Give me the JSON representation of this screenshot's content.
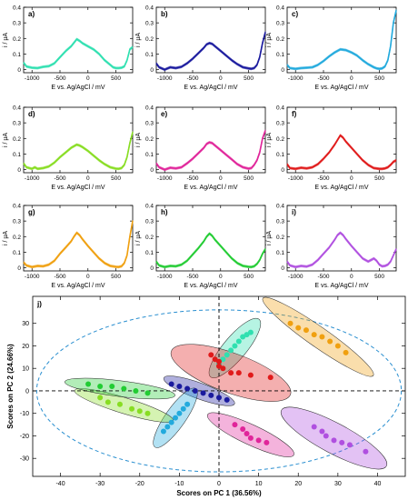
{
  "figure": {
    "voltammogram_panels": [
      {
        "tag": "a)",
        "ylabel": "i / μA",
        "xlabel": "E vs. Ag/AgCl / mV",
        "color": "#2fe0b0",
        "xticks": [
          "-1000",
          "-500",
          "0",
          "500"
        ],
        "yticks": [
          "0",
          "0.1",
          "0.2",
          "0.3",
          "0.4"
        ]
      },
      {
        "tag": "b)",
        "ylabel": "i / μA",
        "xlabel": "E vs. Ag/AgCl / mV",
        "color": "#1a1a9e",
        "xticks": [
          "-1000",
          "-500",
          "0",
          "500"
        ],
        "yticks": [
          "0",
          "0.1",
          "0.2",
          "0.3",
          "0.4"
        ]
      },
      {
        "tag": "c)",
        "ylabel": "i / μA",
        "xlabel": "E vs. Ag/AgCl / mV",
        "color": "#22aadd",
        "xticks": [
          "-1000",
          "-500",
          "0",
          "500"
        ],
        "yticks": [
          "0",
          "0.1",
          "0.2",
          "0.3",
          "0.4"
        ]
      },
      {
        "tag": "d)",
        "ylabel": "i / μA",
        "xlabel": "E vs. Ag/AgCl / mV",
        "color": "#88dd22",
        "xticks": [
          "-1000",
          "-500",
          "0",
          "500"
        ],
        "yticks": [
          "0",
          "0.1",
          "0.2",
          "0.3",
          "0.4"
        ]
      },
      {
        "tag": "e)",
        "ylabel": "i / μA",
        "xlabel": "E vs. Ag/AgCl / mV",
        "color": "#e0259a",
        "xticks": [
          "-1000",
          "-500",
          "0",
          "500"
        ],
        "yticks": [
          "0",
          "0.1",
          "0.2",
          "0.3",
          "0.4"
        ]
      },
      {
        "tag": "f)",
        "ylabel": "i / μA",
        "xlabel": "E vs. Ag/AgCl / mV",
        "color": "#e01a1a",
        "xticks": [
          "-1000",
          "-500",
          "0",
          "500"
        ],
        "yticks": [
          "0",
          "0.1",
          "0.2",
          "0.3",
          "0.4"
        ]
      },
      {
        "tag": "g)",
        "ylabel": "i / μA",
        "xlabel": "E vs. Ag/AgCl / mV",
        "color": "#f0a010",
        "xticks": [
          "-1000",
          "-500",
          "0",
          "500"
        ],
        "yticks": [
          "0",
          "0.1",
          "0.2",
          "0.3",
          "0.4"
        ]
      },
      {
        "tag": "h)",
        "ylabel": "i / μA",
        "xlabel": "E vs. Ag/AgCl / mV",
        "color": "#22cc33",
        "xticks": [
          "-1000",
          "-500",
          "0",
          "500"
        ],
        "yticks": [
          "0",
          "0.1",
          "0.2",
          "0.3",
          "0.4"
        ]
      },
      {
        "tag": "i)",
        "ylabel": "i / μA",
        "xlabel": "E vs. Ag/AgCl / mV",
        "color": "#b050e0",
        "xticks": [
          "-1000",
          "-500",
          "0",
          "500"
        ],
        "yticks": [
          "0",
          "0.1",
          "0.2",
          "0.3",
          "0.4"
        ]
      }
    ],
    "pca_panel": {
      "tag": "j)",
      "xlabel": "Scores on PC 1 (36.56%)",
      "ylabel": "Scores on PC 2 (24.66%)",
      "xticks": [
        "-40",
        "-30",
        "-20",
        "-10",
        "0",
        "10",
        "20",
        "30",
        "40"
      ],
      "yticks": [
        "-30",
        "-20",
        "-10",
        "0",
        "10",
        "20",
        "30"
      ]
    }
  },
  "chart_data": [
    {
      "type": "line",
      "panel": "a)",
      "xlim": [
        -1150,
        800
      ],
      "ylim": [
        -0.02,
        0.4
      ],
      "x": [
        -1150,
        -1100,
        -1000,
        -900,
        -800,
        -700,
        -600,
        -500,
        -400,
        -300,
        -200,
        -150,
        -100,
        0,
        100,
        200,
        300,
        400,
        450,
        500,
        550,
        600,
        650,
        700,
        750,
        800
      ],
      "y": [
        0.045,
        0.02,
        0.012,
        0.01,
        0.018,
        0.022,
        0.04,
        0.08,
        0.118,
        0.15,
        0.195,
        0.185,
        0.17,
        0.15,
        0.13,
        0.1,
        0.06,
        0.03,
        0.015,
        0.01,
        0.01,
        0.012,
        0.02,
        0.06,
        0.13,
        0.145
      ]
    },
    {
      "type": "line",
      "panel": "b)",
      "xlim": [
        -1150,
        800
      ],
      "ylim": [
        -0.02,
        0.4
      ],
      "x": [
        -1150,
        -1100,
        -1000,
        -900,
        -800,
        -700,
        -600,
        -500,
        -400,
        -300,
        -250,
        -200,
        -150,
        -100,
        0,
        100,
        200,
        300,
        400,
        500,
        550,
        600,
        650,
        700,
        750,
        800
      ],
      "y": [
        0.04,
        0.015,
        0.0,
        0.015,
        0.01,
        0.018,
        0.04,
        0.07,
        0.105,
        0.14,
        0.162,
        0.17,
        0.165,
        0.15,
        0.12,
        0.09,
        0.06,
        0.035,
        0.015,
        0.008,
        0.005,
        0.01,
        0.03,
        0.08,
        0.17,
        0.24
      ]
    },
    {
      "type": "line",
      "panel": "c)",
      "xlim": [
        -1150,
        800
      ],
      "ylim": [
        -0.02,
        0.4
      ],
      "x": [
        -1150,
        -1100,
        -1000,
        -900,
        -800,
        -700,
        -600,
        -500,
        -400,
        -300,
        -200,
        -100,
        0,
        100,
        200,
        300,
        400,
        450,
        500,
        550,
        600,
        650,
        700,
        750,
        800
      ],
      "y": [
        0.03,
        0.01,
        0.005,
        0.01,
        0.012,
        0.015,
        0.03,
        0.055,
        0.085,
        0.11,
        0.13,
        0.125,
        0.11,
        0.09,
        0.06,
        0.035,
        0.015,
        0.008,
        0.005,
        0.008,
        0.02,
        0.06,
        0.15,
        0.3,
        0.38
      ]
    },
    {
      "type": "line",
      "panel": "d)",
      "xlim": [
        -1150,
        800
      ],
      "ylim": [
        -0.02,
        0.4
      ],
      "x": [
        -1150,
        -1100,
        -1000,
        -950,
        -900,
        -800,
        -700,
        -600,
        -500,
        -400,
        -300,
        -200,
        -150,
        -100,
        0,
        100,
        200,
        300,
        400,
        500,
        550,
        600,
        650,
        700,
        750,
        800
      ],
      "y": [
        0.04,
        0.015,
        0.005,
        0.015,
        0.005,
        0.01,
        0.02,
        0.045,
        0.08,
        0.11,
        0.14,
        0.16,
        0.155,
        0.145,
        0.12,
        0.09,
        0.06,
        0.035,
        0.015,
        0.006,
        0.005,
        0.01,
        0.03,
        0.08,
        0.17,
        0.24
      ]
    },
    {
      "type": "line",
      "panel": "e)",
      "xlim": [
        -1150,
        800
      ],
      "ylim": [
        -0.02,
        0.4
      ],
      "x": [
        -1150,
        -1100,
        -1000,
        -900,
        -800,
        -700,
        -600,
        -500,
        -400,
        -300,
        -250,
        -200,
        -150,
        -100,
        0,
        100,
        200,
        300,
        400,
        500,
        550,
        600,
        650,
        700,
        750,
        800
      ],
      "y": [
        0.04,
        0.015,
        0.0,
        0.012,
        0.008,
        0.015,
        0.04,
        0.07,
        0.105,
        0.14,
        0.165,
        0.175,
        0.17,
        0.155,
        0.125,
        0.095,
        0.065,
        0.035,
        0.015,
        0.006,
        0.01,
        0.03,
        0.06,
        0.11,
        0.2,
        0.25
      ]
    },
    {
      "type": "line",
      "panel": "f)",
      "xlim": [
        -1150,
        800
      ],
      "ylim": [
        -0.02,
        0.4
      ],
      "x": [
        -1150,
        -1100,
        -1000,
        -900,
        -800,
        -700,
        -600,
        -500,
        -400,
        -300,
        -250,
        -200,
        -150,
        -100,
        0,
        100,
        200,
        300,
        400,
        500,
        550,
        600,
        650,
        700,
        750,
        800
      ],
      "y": [
        0.035,
        0.01,
        0.005,
        0.012,
        0.008,
        0.015,
        0.035,
        0.07,
        0.11,
        0.16,
        0.19,
        0.22,
        0.205,
        0.18,
        0.14,
        0.1,
        0.06,
        0.03,
        0.01,
        0.005,
        0.005,
        0.008,
        0.015,
        0.03,
        0.05,
        0.06
      ]
    },
    {
      "type": "line",
      "panel": "g)",
      "xlim": [
        -1150,
        800
      ],
      "ylim": [
        -0.02,
        0.4
      ],
      "x": [
        -1150,
        -1100,
        -1000,
        -900,
        -800,
        -700,
        -600,
        -500,
        -400,
        -300,
        -250,
        -200,
        -150,
        -100,
        0,
        100,
        200,
        300,
        400,
        500,
        550,
        600,
        650,
        700,
        750,
        800
      ],
      "y": [
        0.035,
        0.015,
        0.005,
        0.012,
        0.01,
        0.02,
        0.045,
        0.09,
        0.13,
        0.17,
        0.2,
        0.225,
        0.21,
        0.185,
        0.14,
        0.1,
        0.06,
        0.03,
        0.012,
        0.006,
        0.005,
        0.01,
        0.03,
        0.08,
        0.2,
        0.3
      ]
    },
    {
      "type": "line",
      "panel": "h)",
      "xlim": [
        -1150,
        800
      ],
      "ylim": [
        -0.02,
        0.4
      ],
      "x": [
        -1150,
        -1100,
        -1000,
        -900,
        -800,
        -700,
        -600,
        -500,
        -400,
        -300,
        -250,
        -200,
        -150,
        -100,
        0,
        100,
        200,
        300,
        400,
        500,
        550,
        600,
        650,
        700,
        750,
        800
      ],
      "y": [
        0.04,
        0.015,
        0.005,
        0.012,
        0.01,
        0.02,
        0.045,
        0.085,
        0.125,
        0.17,
        0.2,
        0.22,
        0.205,
        0.18,
        0.14,
        0.1,
        0.06,
        0.03,
        0.012,
        0.006,
        0.005,
        0.01,
        0.025,
        0.05,
        0.09,
        0.12
      ]
    },
    {
      "type": "line",
      "panel": "i)",
      "xlim": [
        -1150,
        800
      ],
      "ylim": [
        -0.02,
        0.4
      ],
      "x": [
        -1150,
        -1100,
        -1000,
        -900,
        -800,
        -700,
        -600,
        -500,
        -400,
        -300,
        -250,
        -200,
        -150,
        -100,
        0,
        100,
        200,
        300,
        350,
        400,
        450,
        500,
        550,
        600,
        650,
        700,
        750,
        800
      ],
      "y": [
        0.04,
        0.015,
        0.005,
        0.012,
        0.008,
        0.02,
        0.05,
        0.09,
        0.13,
        0.18,
        0.21,
        0.225,
        0.21,
        0.185,
        0.14,
        0.1,
        0.06,
        0.04,
        0.05,
        0.06,
        0.045,
        0.02,
        0.01,
        0.012,
        0.02,
        0.04,
        0.08,
        0.12
      ]
    },
    {
      "type": "scatter",
      "panel": "j)",
      "xlabel": "Scores on PC 1 (36.56%)",
      "ylabel": "Scores on PC 2 (24.66%)",
      "xlim": [
        -47,
        47
      ],
      "ylim": [
        -38,
        42
      ],
      "reference_lines": {
        "x": 0,
        "y": 0
      },
      "confidence_ellipse": {
        "center": [
          0,
          0
        ],
        "rx": 46,
        "ry": 36
      },
      "series": [
        {
          "color": "#2fe0b0",
          "points": [
            [
              0,
              12
            ],
            [
              1,
              14
            ],
            [
              2,
              16
            ],
            [
              3,
              18
            ],
            [
              4,
              20
            ],
            [
              5,
              22
            ],
            [
              6,
              24
            ],
            [
              7,
              25
            ],
            [
              8,
              26
            ]
          ],
          "ellipse": {
            "center": [
              4,
              19
            ],
            "rx": 9.5,
            "ry": 3.2,
            "angle_deg": 50
          }
        },
        {
          "color": "#1a1a9e",
          "points": [
            [
              -12,
              3
            ],
            [
              -10,
              2
            ],
            [
              -8,
              1
            ],
            [
              -6,
              0
            ],
            [
              -4,
              -1
            ],
            [
              -2,
              -2
            ],
            [
              0,
              -3
            ],
            [
              2,
              -4
            ]
          ],
          "ellipse": {
            "center": [
              -5,
              0
            ],
            "rx": 9.5,
            "ry": 2.2,
            "angle_deg": -20
          }
        },
        {
          "color": "#22aadd",
          "points": [
            [
              -14,
              -18
            ],
            [
              -13,
              -16
            ],
            [
              -12,
              -14
            ],
            [
              -11,
              -12
            ],
            [
              -10,
              -10
            ],
            [
              -9,
              -8
            ],
            [
              -8,
              -6
            ]
          ],
          "ellipse": {
            "center": [
              -11,
              -12
            ],
            "rx": 9,
            "ry": 2.8,
            "angle_deg": 55
          }
        },
        {
          "color": "#88dd22",
          "points": [
            [
              -30,
              -3
            ],
            [
              -28,
              -5
            ],
            [
              -25,
              -6
            ],
            [
              -22,
              -8
            ],
            [
              -20,
              -9
            ],
            [
              -18,
              -10
            ]
          ],
          "ellipse": {
            "center": [
              -24,
              -6.5
            ],
            "rx": 13,
            "ry": 2.2,
            "angle_deg": -17
          }
        },
        {
          "color": "#e0259a",
          "points": [
            [
              4,
              -15
            ],
            [
              6,
              -17
            ],
            [
              7,
              -19
            ],
            [
              8,
              -21
            ],
            [
              10,
              -22
            ],
            [
              12,
              -23
            ]
          ],
          "ellipse": {
            "center": [
              8,
              -19.5
            ],
            "rx": 12,
            "ry": 2.8,
            "angle_deg": -25
          }
        },
        {
          "color": "#e01a1a",
          "points": [
            [
              -2,
              16
            ],
            [
              -1,
              14
            ],
            [
              0,
              13
            ],
            [
              0,
              11
            ],
            [
              1,
              10
            ],
            [
              3,
              8
            ],
            [
              5,
              8
            ],
            [
              8,
              7
            ],
            [
              13,
              6
            ]
          ],
          "ellipse": {
            "center": [
              3,
              8
            ],
            "rx": 16,
            "ry": 5.5,
            "angle_deg": -20
          }
        },
        {
          "color": "#f0a010",
          "points": [
            [
              18,
              30
            ],
            [
              20,
              28
            ],
            [
              22,
              27
            ],
            [
              24,
              25
            ],
            [
              26,
              24
            ],
            [
              28,
              22
            ],
            [
              30,
              20
            ],
            [
              32,
              17
            ]
          ],
          "ellipse": {
            "center": [
              25,
              24
            ],
            "rx": 17,
            "ry": 2.8,
            "angle_deg": -35
          }
        },
        {
          "color": "#22cc33",
          "points": [
            [
              -33,
              3
            ],
            [
              -30,
              2
            ],
            [
              -27,
              2
            ],
            [
              -24,
              1
            ],
            [
              -21,
              0
            ],
            [
              -18,
              -1
            ]
          ],
          "ellipse": {
            "center": [
              -25,
              1
            ],
            "rx": 14,
            "ry": 2.2,
            "angle_deg": -7
          }
        },
        {
          "color": "#b050e0",
          "points": [
            [
              24,
              -16
            ],
            [
              26,
              -18
            ],
            [
              27,
              -20
            ],
            [
              29,
              -22
            ],
            [
              31,
              -23
            ],
            [
              33,
              -24
            ],
            [
              37,
              -27
            ]
          ],
          "ellipse": {
            "center": [
              29,
              -21
            ],
            "rx": 15,
            "ry": 4.2,
            "angle_deg": -28
          }
        }
      ]
    }
  ]
}
